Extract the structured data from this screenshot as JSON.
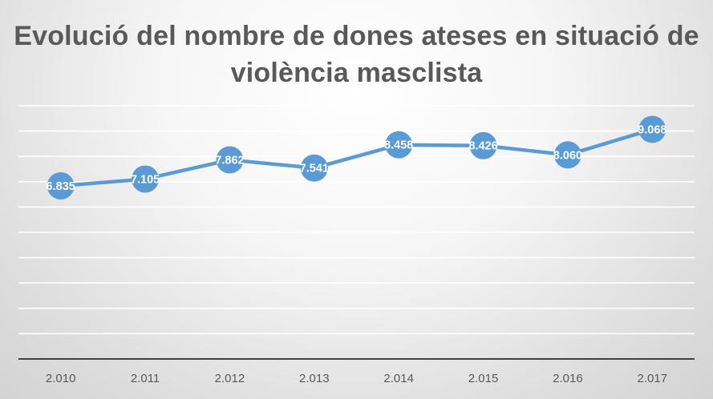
{
  "chart_data": {
    "type": "line",
    "title": "Evolució del nombre de dones ateses en situació de violència masclista",
    "categories": [
      "2.010",
      "2.011",
      "2.012",
      "2.013",
      "2.014",
      "2.015",
      "2.016",
      "2.017"
    ],
    "values": [
      6835,
      7105,
      7862,
      7541,
      8458,
      8426,
      8060,
      9068
    ],
    "data_labels": [
      "6.835",
      "7.105",
      "7.862",
      "7.541",
      "8.458",
      "8.426",
      "8.060",
      "9.068"
    ],
    "xlabel": "",
    "ylabel": "",
    "ylim": [
      0,
      10000
    ],
    "y_gridline_step": 1000,
    "y_tick_labels_shown": false,
    "grid": true,
    "legend": "none",
    "colors": {
      "line": "#5b9bd5",
      "marker": "#5b9bd5",
      "gridline": "#ffffff",
      "axis": "#404040",
      "title": "#595959",
      "tick_label": "#595959",
      "data_label": "#ffffff"
    }
  }
}
